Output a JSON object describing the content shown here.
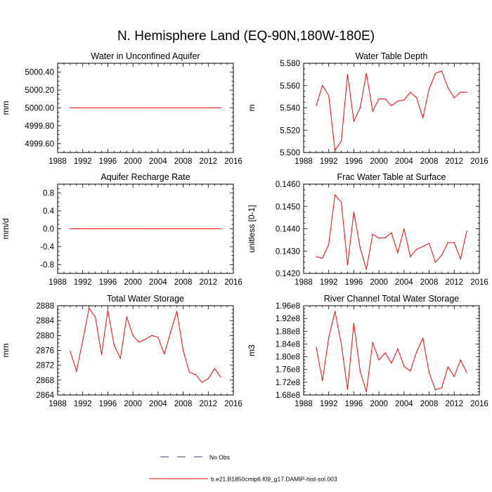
{
  "title": "N. Hemisphere Land (EQ-90N,180W-180E)",
  "colors": {
    "model": "#ff0000",
    "obs": "#3a3a8c",
    "frame": "#000000"
  },
  "legend": {
    "entries": [
      {
        "label": "No Obs",
        "style": "dashed",
        "color": "#3a3a8c"
      },
      {
        "label": "b.e21.B1850cmip6.f09_g17.DAMIP-hist-sol.003",
        "style": "solid",
        "color": "#ff0000"
      }
    ]
  },
  "chart_data": [
    {
      "type": "line",
      "title": "Water in Unconfined Aquifer",
      "ylabel": "mm",
      "xlim": [
        1988,
        2016
      ],
      "xticks": [
        1988,
        1992,
        1996,
        2000,
        2004,
        2008,
        2012,
        2016
      ],
      "ylim": [
        4999.5,
        5000.5
      ],
      "yticks": [
        4999.6,
        4999.8,
        5000.0,
        5000.2,
        5000.4
      ],
      "ytick_labels": [
        "4999.60",
        "4999.80",
        "5000.00",
        "5000.20",
        "5000.40"
      ],
      "x": [
        1990,
        1991,
        1992,
        1993,
        1994,
        1995,
        1996,
        1997,
        1998,
        1999,
        2000,
        2001,
        2002,
        2003,
        2004,
        2005,
        2006,
        2007,
        2008,
        2009,
        2010,
        2011,
        2012,
        2013,
        2014
      ],
      "values": [
        5000,
        5000,
        5000,
        5000,
        5000,
        5000,
        5000,
        5000,
        5000,
        5000,
        5000,
        5000,
        5000,
        5000,
        5000,
        5000,
        5000,
        5000,
        5000,
        5000,
        5000,
        5000,
        5000,
        5000,
        5000
      ]
    },
    {
      "type": "line",
      "title": "Water Table Depth",
      "ylabel": "m",
      "xlim": [
        1988,
        2016
      ],
      "xticks": [
        1988,
        1992,
        1996,
        2000,
        2004,
        2008,
        2012,
        2016
      ],
      "ylim": [
        5.5,
        5.58
      ],
      "yticks": [
        5.5,
        5.52,
        5.54,
        5.56,
        5.58
      ],
      "ytick_labels": [
        "5.500",
        "5.520",
        "5.540",
        "5.560",
        "5.580"
      ],
      "x": [
        1990,
        1991,
        1992,
        1993,
        1994,
        1995,
        1996,
        1997,
        1998,
        1999,
        2000,
        2001,
        2002,
        2003,
        2004,
        2005,
        2006,
        2007,
        2008,
        2009,
        2010,
        2011,
        2012,
        2013,
        2014
      ],
      "values": [
        5.542,
        5.56,
        5.551,
        5.502,
        5.51,
        5.57,
        5.528,
        5.54,
        5.571,
        5.537,
        5.548,
        5.548,
        5.542,
        5.546,
        5.547,
        5.554,
        5.549,
        5.531,
        5.557,
        5.571,
        5.573,
        5.558,
        5.549,
        5.554,
        5.554
      ]
    },
    {
      "type": "line",
      "title": "Aquifer Recharge Rate",
      "ylabel": "mm/d",
      "xlim": [
        1988,
        2016
      ],
      "xticks": [
        1988,
        1992,
        1996,
        2000,
        2004,
        2008,
        2012,
        2016
      ],
      "ylim": [
        -1.0,
        1.0
      ],
      "yticks": [
        -0.8,
        -0.4,
        0.0,
        0.4,
        0.8
      ],
      "ytick_labels": [
        "-0.8",
        "-0.4",
        "0.0",
        "0.4",
        "0.8"
      ],
      "x": [
        1990,
        1991,
        1992,
        1993,
        1994,
        1995,
        1996,
        1997,
        1998,
        1999,
        2000,
        2001,
        2002,
        2003,
        2004,
        2005,
        2006,
        2007,
        2008,
        2009,
        2010,
        2011,
        2012,
        2013,
        2014
      ],
      "values": [
        0,
        0,
        0,
        0,
        0,
        0,
        0,
        0,
        0,
        0,
        0,
        0,
        0,
        0,
        0,
        0,
        0,
        0,
        0,
        0,
        0,
        0,
        0,
        0,
        0
      ]
    },
    {
      "type": "line",
      "title": "Frac Water Table at Surface",
      "ylabel": "unitless [0-1]",
      "xlim": [
        1988,
        2016
      ],
      "xticks": [
        1988,
        1992,
        1996,
        2000,
        2004,
        2008,
        2012,
        2016
      ],
      "ylim": [
        0.142,
        0.146
      ],
      "yticks": [
        0.142,
        0.143,
        0.144,
        0.145,
        0.146
      ],
      "ytick_labels": [
        "0.1420",
        "0.1430",
        "0.1440",
        "0.1450",
        "0.1460"
      ],
      "x": [
        1990,
        1991,
        1992,
        1993,
        1994,
        1995,
        1996,
        1997,
        1998,
        1999,
        2000,
        2001,
        2002,
        2003,
        2004,
        2005,
        2006,
        2007,
        2008,
        2009,
        2010,
        2011,
        2012,
        2013,
        2014
      ],
      "values": [
        0.14275,
        0.14268,
        0.1433,
        0.14552,
        0.1452,
        0.14238,
        0.14475,
        0.14315,
        0.14218,
        0.14375,
        0.14358,
        0.1436,
        0.14382,
        0.14292,
        0.144,
        0.14275,
        0.14308,
        0.1432,
        0.14335,
        0.1425,
        0.14282,
        0.14338,
        0.14338,
        0.14265,
        0.1439
      ]
    },
    {
      "type": "line",
      "title": "Total Water Storage",
      "ylabel": "mm",
      "xlim": [
        1988,
        2016
      ],
      "xticks": [
        1988,
        1992,
        1996,
        2000,
        2004,
        2008,
        2012,
        2016
      ],
      "ylim": [
        2864,
        2888
      ],
      "yticks": [
        2864,
        2868,
        2872,
        2876,
        2880,
        2884,
        2888
      ],
      "ytick_labels": [
        "2864",
        "2868",
        "2872",
        "2876",
        "2880",
        "2884",
        "2888"
      ],
      "x": [
        1990,
        1991,
        1992,
        1993,
        1994,
        1995,
        1996,
        1997,
        1998,
        1999,
        2000,
        2001,
        2002,
        2003,
        2004,
        2005,
        2006,
        2007,
        2008,
        2009,
        2010,
        2011,
        2012,
        2013,
        2014
      ],
      "values": [
        2875.8,
        2870.4,
        2878.6,
        2887.3,
        2885.0,
        2874.9,
        2886.8,
        2877.4,
        2873.9,
        2885.0,
        2880.0,
        2878.2,
        2879.0,
        2880.0,
        2879.5,
        2875.0,
        2880.9,
        2886.5,
        2876.0,
        2870.1,
        2869.5,
        2867.4,
        2868.4,
        2871.1,
        2868.8
      ]
    },
    {
      "type": "line",
      "title": "River Channel Total Water Storage",
      "ylabel": "m3",
      "xlim": [
        1988,
        2016
      ],
      "xticks": [
        1988,
        1992,
        1996,
        2000,
        2004,
        2008,
        2012,
        2016
      ],
      "ylim": [
        168000000,
        196000000
      ],
      "yticks": [
        168000000,
        172000000,
        176000000,
        180000000,
        184000000,
        188000000,
        192000000,
        196000000
      ],
      "ytick_labels": [
        "1.68e8",
        "1.72e8",
        "1.76e8",
        "1.80e8",
        "1.84e8",
        "1.88e8",
        "1.92e8",
        "1.96e8"
      ],
      "x": [
        1990,
        1991,
        1992,
        1993,
        1994,
        1995,
        1996,
        1997,
        1998,
        1999,
        2000,
        2001,
        2002,
        2003,
        2004,
        2005,
        2006,
        2007,
        2008,
        2009,
        2010,
        2011,
        2012,
        2013,
        2014
      ],
      "values": [
        183000000,
        172500000,
        186000000,
        194200000,
        184000000,
        169800000,
        190500000,
        175500000,
        169000000,
        184500000,
        179000000,
        181200000,
        178000000,
        182500000,
        177000000,
        175500000,
        181500000,
        185800000,
        175000000,
        169600000,
        170300000,
        176800000,
        173800000,
        179000000,
        175000000
      ]
    }
  ]
}
